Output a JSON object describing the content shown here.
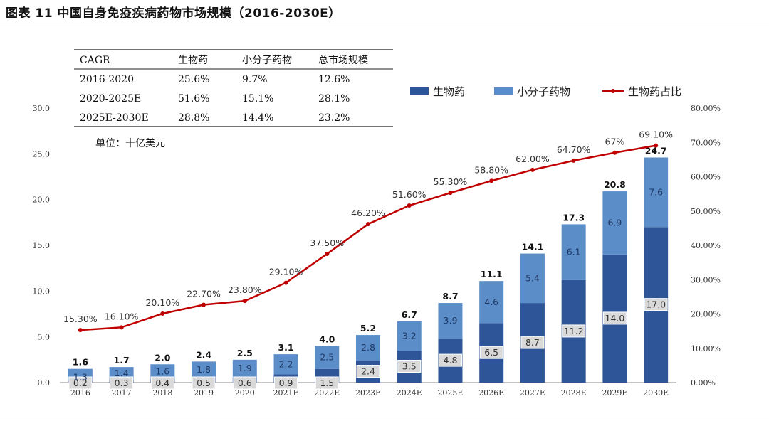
{
  "figure": {
    "title": "图表 11  中国自身免疫疾病药物市场规模（2016-2030E）"
  },
  "unit_note": "单位：十亿美元",
  "legend": [
    {
      "label": "生物药",
      "color": "#2e5597",
      "kind": "bar"
    },
    {
      "label": "小分子药物",
      "color": "#5b8dc9",
      "kind": "bar"
    },
    {
      "label": "生物药占比",
      "color": "#c00000",
      "kind": "line"
    }
  ],
  "cagr_table": {
    "header": [
      "CAGR",
      "生物药",
      "小分子药物",
      "总市场规模"
    ],
    "rows": [
      [
        "2016-2020",
        "25.6%",
        "9.7%",
        "12.6%"
      ],
      [
        "2020-2025E",
        "51.6%",
        "15.1%",
        "28.1%"
      ],
      [
        "2025E-2030E",
        "28.8%",
        "14.4%",
        "23.2%"
      ]
    ]
  },
  "chart_data": {
    "type": "bar",
    "stacked": true,
    "categories": [
      "2016",
      "2017",
      "2018",
      "2019",
      "2020",
      "2021E",
      "2022E",
      "2023E",
      "2024E",
      "2025E",
      "2026E",
      "2027E",
      "2028E",
      "2029E",
      "2030E"
    ],
    "series": [
      {
        "name": "生物药",
        "values": [
          0.2,
          0.3,
          0.4,
          0.5,
          0.6,
          0.9,
          1.5,
          2.4,
          3.5,
          4.8,
          6.5,
          8.7,
          11.2,
          14.0,
          17.0
        ],
        "labels": [
          "0.2",
          "0.3",
          "0.4",
          "0.5",
          "0.6",
          "0.9",
          "1.5",
          "2.4",
          "3.5",
          "4.8",
          "6.5",
          "8.7",
          "11.2",
          "14.0",
          "17.0"
        ]
      },
      {
        "name": "小分子药物",
        "values": [
          1.3,
          1.4,
          1.6,
          1.8,
          1.9,
          2.2,
          2.5,
          2.8,
          3.2,
          3.9,
          4.6,
          5.4,
          6.1,
          6.9,
          7.6
        ],
        "labels": [
          "1.3",
          "1.4",
          "1.6",
          "1.8",
          "1.9",
          "2.2",
          "2.5",
          "2.8",
          "3.2",
          "3.9",
          "4.6",
          "5.4",
          "6.1",
          "6.9",
          "7.6"
        ]
      },
      {
        "name": "生物药占比",
        "type": "line",
        "axis": "right",
        "values": [
          15.3,
          16.1,
          20.1,
          22.7,
          23.8,
          29.1,
          37.5,
          46.2,
          51.6,
          55.3,
          58.8,
          62.0,
          64.7,
          67.0,
          69.1
        ],
        "labels": [
          "15.30%",
          "16.10%",
          "20.10%",
          "22.70%",
          "23.80%",
          "29.10%",
          "37.50%",
          "46.20%",
          "51.60%",
          "55.30%",
          "58.80%",
          "62.00%",
          "64.70%",
          "67%",
          "69.10%"
        ]
      }
    ],
    "totals": [
      "1.6",
      "1.7",
      "2.0",
      "2.4",
      "2.5",
      "3.1",
      "4.0",
      "5.2",
      "6.7",
      "8.7",
      "11.1",
      "14.1",
      "17.3",
      "20.8",
      "24.7"
    ],
    "ylim": [
      0,
      30
    ],
    "y_ticks": [
      "0.0",
      "5.0",
      "10.0",
      "15.0",
      "20.0",
      "25.0",
      "30.0"
    ],
    "y2lim": [
      0,
      80
    ],
    "y2_ticks": [
      "0.00%",
      "10.00%",
      "20.00%",
      "30.00%",
      "40.00%",
      "50.00%",
      "60.00%",
      "70.00%",
      "80.00%"
    ],
    "legend_position": "top-right",
    "grid": false
  }
}
